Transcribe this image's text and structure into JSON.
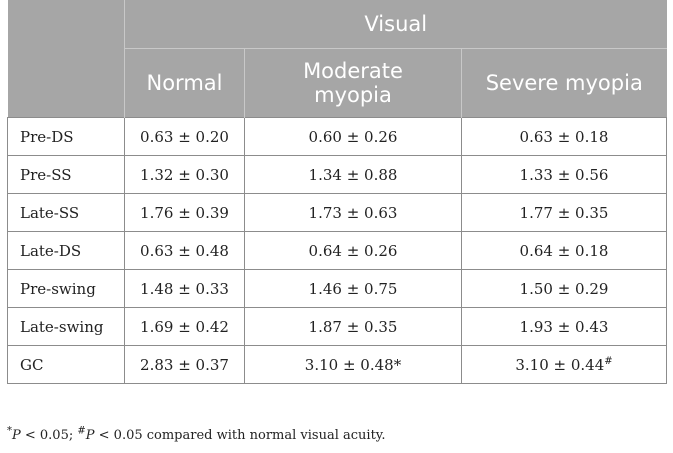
{
  "table": {
    "group_header": "Visual",
    "columns": [
      "Normal",
      "Moderate\nmyopia",
      "Severe myopia"
    ],
    "rows": [
      {
        "label": "Pre-DS",
        "values": [
          "0.63 ± 0.20",
          "0.60 ± 0.26",
          "0.63 ± 0.18"
        ]
      },
      {
        "label": "Pre-SS",
        "values": [
          "1.32 ± 0.30",
          "1.34 ± 0.88",
          "1.33 ± 0.56"
        ]
      },
      {
        "label": "Late-SS",
        "values": [
          "1.76 ± 0.39",
          "1.73 ± 0.63",
          "1.77 ± 0.35"
        ]
      },
      {
        "label": "Late-DS",
        "values": [
          "0.63 ± 0.48",
          "0.64 ± 0.26",
          "0.64 ± 0.18"
        ]
      },
      {
        "label": "Pre-swing",
        "values": [
          "1.48 ± 0.33",
          "1.46 ± 0.75",
          "1.50 ± 0.29"
        ]
      },
      {
        "label": "Late-swing",
        "values": [
          "1.69 ± 0.42",
          "1.87 ± 0.35",
          "1.93 ± 0.43"
        ]
      },
      {
        "label": "GC",
        "values": [
          "2.83 ± 0.37",
          "3.10 ± 0.48*",
          "3.10 ± 0.44#"
        ]
      }
    ]
  },
  "footnote": {
    "mark1": "*",
    "p1": "P",
    "cond1": " < 0.05; ",
    "mark2": "#",
    "p2": "P",
    "cond2": " < 0.05 compared with normal visual acuity."
  }
}
